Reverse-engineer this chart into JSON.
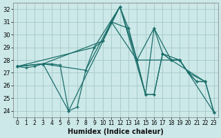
{
  "xlabel": "Humidex (Indice chaleur)",
  "bg_color": "#cce8e8",
  "grid_color": "#aacccc",
  "line_color": "#1a6e6a",
  "xlim": [
    -0.5,
    23.5
  ],
  "ylim": [
    23.5,
    32.5
  ],
  "xticks": [
    0,
    1,
    2,
    3,
    4,
    5,
    6,
    7,
    8,
    9,
    10,
    11,
    12,
    13,
    14,
    15,
    16,
    17,
    18,
    19,
    20,
    21,
    22,
    23
  ],
  "yticks": [
    24,
    25,
    26,
    27,
    28,
    29,
    30,
    31,
    32
  ],
  "lines": [
    {
      "x": [
        0,
        1,
        2,
        3,
        4,
        5,
        6,
        7,
        8,
        9,
        10,
        11,
        12,
        13,
        14,
        15,
        16,
        17,
        18,
        19,
        20,
        21,
        22,
        23
      ],
      "y": [
        27.5,
        27.4,
        27.5,
        27.7,
        27.7,
        27.6,
        24.0,
        24.3,
        27.2,
        29.0,
        29.5,
        31.0,
        32.2,
        30.5,
        28.0,
        25.3,
        25.3,
        28.5,
        28.0,
        28.0,
        27.0,
        26.3,
        26.3,
        23.9
      ]
    },
    {
      "x": [
        0,
        3,
        6,
        12,
        15,
        16,
        17,
        19,
        20,
        23
      ],
      "y": [
        27.5,
        27.7,
        24.0,
        32.2,
        25.3,
        25.3,
        28.5,
        28.0,
        27.0,
        23.9
      ]
    },
    {
      "x": [
        0,
        3,
        8,
        11,
        13,
        15,
        16,
        17,
        18,
        22
      ],
      "y": [
        27.5,
        27.7,
        27.2,
        31.0,
        30.5,
        25.3,
        30.5,
        28.5,
        28.0,
        26.3
      ]
    },
    {
      "x": [
        0,
        3,
        10,
        11,
        14,
        16,
        18,
        19,
        20,
        22
      ],
      "y": [
        27.5,
        27.7,
        29.5,
        31.0,
        28.0,
        30.5,
        28.0,
        28.0,
        27.0,
        26.3
      ]
    },
    {
      "x": [
        0,
        9,
        12,
        14,
        19,
        20,
        21,
        22,
        23
      ],
      "y": [
        27.5,
        29.0,
        32.2,
        28.0,
        28.0,
        27.0,
        26.3,
        26.3,
        23.9
      ]
    }
  ]
}
